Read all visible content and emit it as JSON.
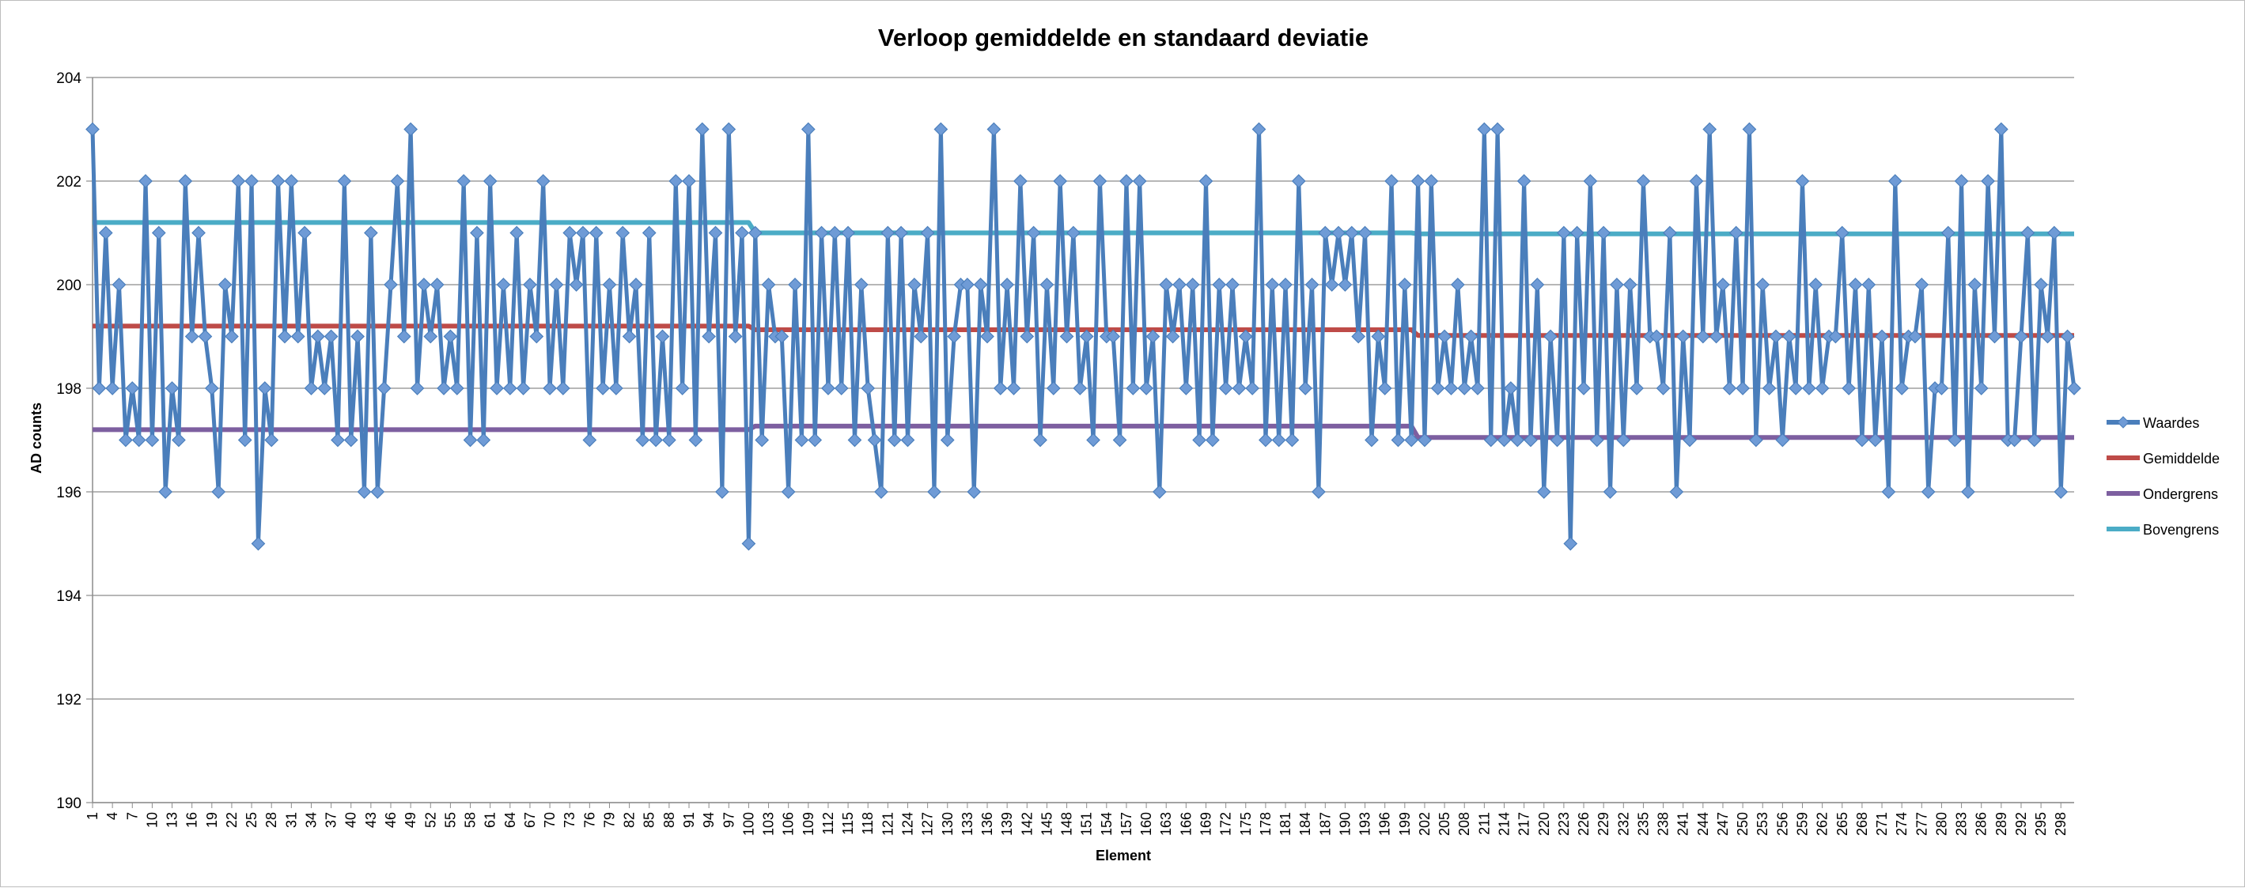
{
  "chart_data": {
    "type": "line",
    "title": "Verloop gemiddelde en standaard deviatie",
    "xlabel": "Element",
    "ylabel": "AD counts",
    "ylim": [
      190,
      204
    ],
    "yticks": [
      190,
      192,
      194,
      196,
      198,
      200,
      202,
      204
    ],
    "x_range": [
      1,
      300
    ],
    "x_tick_step": 3,
    "grid": "horizontal",
    "legend": "right",
    "series": [
      {
        "name": "Waardes",
        "color": "#4a7ebb",
        "marker": "diamond",
        "values": [
          203,
          198,
          201,
          198,
          200,
          197,
          198,
          197,
          202,
          197,
          201,
          196,
          198,
          197,
          202,
          199,
          201,
          199,
          198,
          196,
          200,
          199,
          202,
          197,
          202,
          195,
          198,
          197,
          202,
          199,
          202,
          199,
          201,
          198,
          199,
          198,
          199,
          197,
          202,
          197,
          199,
          196,
          201,
          196,
          198,
          200,
          202,
          199,
          203,
          198,
          200,
          199,
          200,
          198,
          199,
          198,
          202,
          197,
          201,
          197,
          202,
          198,
          200,
          198,
          201,
          198,
          200,
          199,
          202,
          198,
          200,
          198,
          201,
          200,
          201,
          197,
          201,
          198,
          200,
          198,
          201,
          199,
          200,
          197,
          201,
          197,
          199,
          197,
          202,
          198,
          202,
          197,
          203,
          199,
          201,
          196,
          203,
          199,
          201,
          195,
          201,
          197,
          200,
          199,
          199,
          196,
          200,
          197,
          203,
          197,
          201,
          198,
          201,
          198,
          201,
          197,
          200,
          198,
          197,
          196,
          201,
          197,
          201,
          197,
          200,
          199,
          201,
          196,
          203,
          197,
          199,
          200,
          200,
          196,
          200,
          199,
          203,
          198,
          200,
          198,
          202,
          199,
          201,
          197,
          200,
          198,
          202,
          199,
          201,
          198,
          199,
          197,
          202,
          199,
          199,
          197,
          202,
          198,
          202,
          198,
          199,
          196,
          200,
          199,
          200,
          198,
          200,
          197,
          202,
          197,
          200,
          198,
          200,
          198,
          199,
          198,
          203,
          197,
          200,
          197,
          200,
          197,
          202,
          198,
          200,
          196,
          201,
          200,
          201,
          200,
          201,
          199,
          201,
          197,
          199,
          198,
          202,
          197,
          200,
          197,
          202,
          197,
          202,
          198,
          199,
          198,
          200,
          198,
          199,
          198,
          203,
          197,
          203,
          197,
          198,
          197,
          202,
          197,
          200,
          196,
          199,
          197,
          201,
          195,
          201,
          198,
          202,
          197,
          201,
          196,
          200,
          197,
          200,
          198,
          202,
          199,
          199,
          198,
          201,
          196,
          199,
          197,
          202,
          199,
          203,
          199,
          200,
          198,
          201,
          198,
          203,
          197,
          200,
          198,
          199,
          197,
          199,
          198,
          202,
          198,
          200,
          198,
          199,
          199,
          201,
          198,
          200,
          197,
          200,
          197,
          199,
          196,
          202,
          198,
          199,
          199,
          200,
          196,
          198,
          198,
          201,
          197,
          202,
          196,
          200,
          198,
          202,
          199,
          203,
          197,
          197,
          199,
          201,
          197,
          200,
          199,
          201,
          196,
          199,
          198
        ]
      },
      {
        "name": "Gemiddelde",
        "color": "#be4b48",
        "segments": [
          {
            "x_start": 1,
            "x_end": 100,
            "value": 199.2
          },
          {
            "x_start": 101,
            "x_end": 200,
            "value": 199.13
          },
          {
            "x_start": 201,
            "x_end": 300,
            "value": 199.02
          }
        ]
      },
      {
        "name": "Ondergrens",
        "color": "#7d5fa0",
        "segments": [
          {
            "x_start": 1,
            "x_end": 100,
            "value": 197.2
          },
          {
            "x_start": 101,
            "x_end": 200,
            "value": 197.27
          },
          {
            "x_start": 201,
            "x_end": 300,
            "value": 197.05
          }
        ]
      },
      {
        "name": "Bovengrens",
        "color": "#4bacc6",
        "segments": [
          {
            "x_start": 1,
            "x_end": 100,
            "value": 201.2
          },
          {
            "x_start": 101,
            "x_end": 200,
            "value": 201.0
          },
          {
            "x_start": 201,
            "x_end": 300,
            "value": 200.98
          }
        ]
      }
    ]
  }
}
